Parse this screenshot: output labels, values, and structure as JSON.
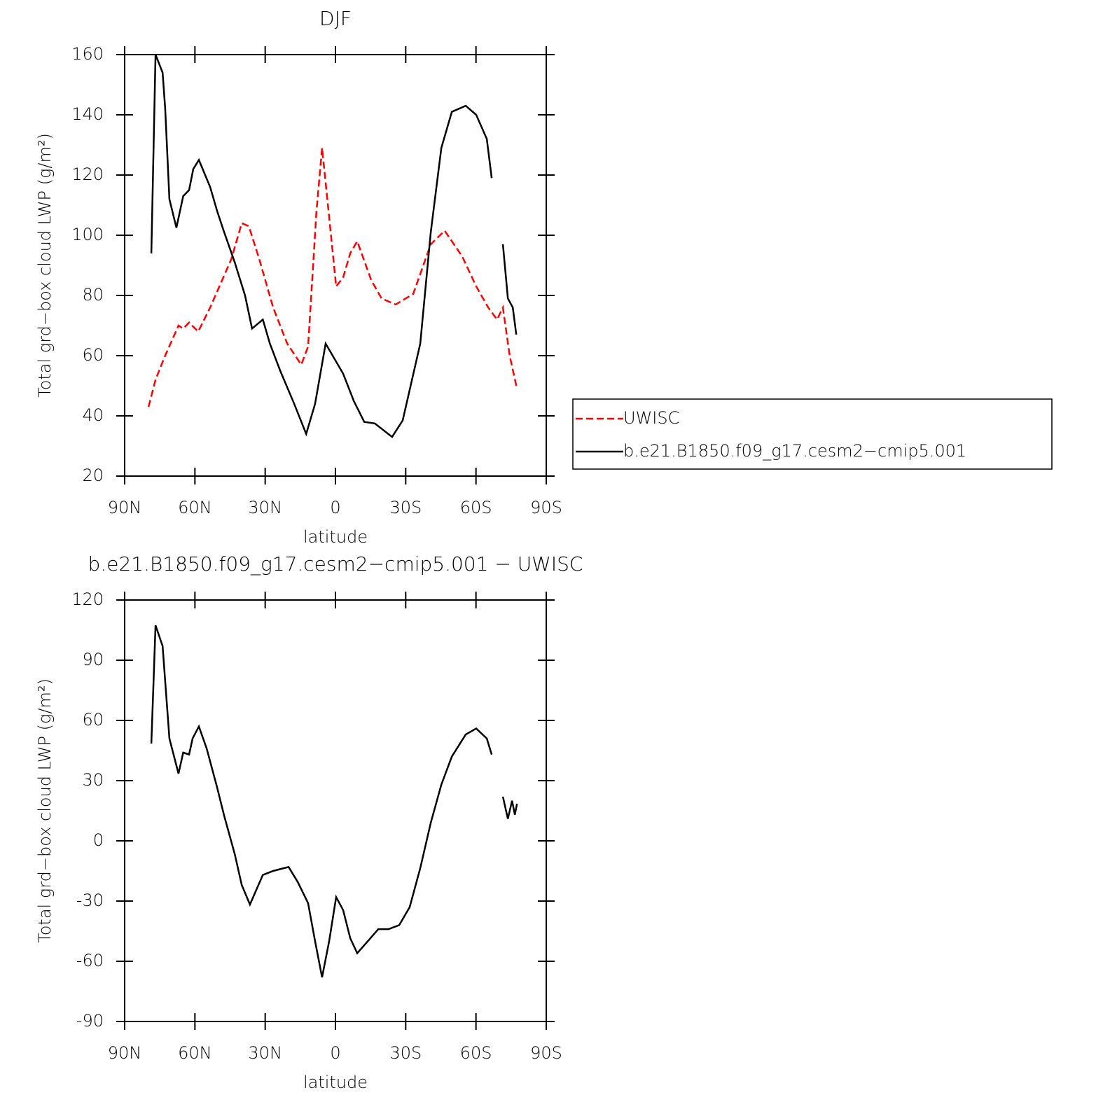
{
  "chart_data": [
    {
      "type": "line",
      "title": "DJF",
      "xlabel": "latitude",
      "ylabel": "Total grd−box cloud LWP (g/m²)",
      "xlim": [
        90,
        -90
      ],
      "xticks": [
        {
          "value": 90,
          "label": "90N"
        },
        {
          "value": 60,
          "label": "60N"
        },
        {
          "value": 30,
          "label": "30N"
        },
        0,
        {
          "value": -30,
          "label": "30S"
        },
        {
          "value": -60,
          "label": "60S"
        },
        {
          "value": -90,
          "label": "90S"
        }
      ],
      "ylim": [
        20,
        160
      ],
      "yticks": [
        20,
        40,
        60,
        80,
        100,
        120,
        140,
        160
      ],
      "legend": "right",
      "series": [
        {
          "name": "UWISC",
          "color": "#ff0000",
          "linestyle": "dashed",
          "x": [
            79.8,
            76.8,
            73,
            67,
            65,
            62.5,
            58.6,
            53.5,
            49,
            44.5,
            40,
            37,
            32.5,
            26.6,
            20.6,
            14.6,
            11.7,
            8.1,
            5.7,
            2.7,
            -0.3,
            -3.3,
            -6.3,
            -9.3,
            -15.3,
            -19.7,
            -25.7,
            -33.2,
            -40.7,
            -46.6,
            -54.1,
            -60.1,
            -65.2,
            -69,
            -71.5,
            -74.4,
            -77.5
          ],
          "values": [
            43,
            52,
            59.5,
            70,
            69,
            71,
            68,
            76,
            84,
            92,
            104,
            103,
            92,
            76,
            64,
            57,
            63,
            108,
            129,
            106,
            83,
            86,
            94,
            98,
            85,
            79,
            77,
            80.5,
            97,
            101.5,
            93,
            83,
            76,
            72,
            76,
            60,
            49
          ]
        },
        {
          "name": "b.e21.B1850.f09_g17.cesm2−cmip5.001",
          "color": "#000000",
          "linestyle": "solid",
          "x": [
            78.6,
            76.8,
            73.8,
            72.7,
            70.9,
            67.9,
            65,
            62.5,
            60.7,
            58.3,
            53.5,
            50.5,
            47.5,
            43,
            38.6,
            35.6,
            31,
            28,
            23.6,
            17.6,
            12.5,
            8.7,
            4.2,
            1.2,
            -3.3,
            -7.8,
            -12.3,
            -16.8,
            -24.2,
            -28.7,
            -36.2,
            -40.7,
            -45.2,
            -49.7,
            -55.6,
            -60.1,
            -64.6,
            -66.7,
            -69,
            -71.5,
            -73.6,
            -75.7,
            -77.2
          ],
          "values": [
            94,
            160,
            154,
            142,
            112,
            102.5,
            113,
            115,
            122,
            125,
            116,
            108,
            101,
            91,
            80,
            69,
            72,
            64,
            55,
            44,
            34,
            44,
            64,
            60,
            54,
            45,
            38,
            37.5,
            33,
            38.5,
            64,
            101,
            129,
            141,
            143,
            140,
            132,
            119,
            null,
            97,
            79,
            76,
            67
          ]
        }
      ]
    },
    {
      "type": "line",
      "title": "b.e21.B1850.f09_g17.cesm2−cmip5.001  −  UWISC",
      "xlabel": "latitude",
      "ylabel": "Total grd−box cloud LWP (g/m²)",
      "xlim": [
        90,
        -90
      ],
      "xticks": [
        {
          "value": 90,
          "label": "90N"
        },
        {
          "value": 60,
          "label": "60N"
        },
        {
          "value": 30,
          "label": "30N"
        },
        0,
        {
          "value": -30,
          "label": "30S"
        },
        {
          "value": -60,
          "label": "60S"
        },
        {
          "value": -90,
          "label": "90S"
        }
      ],
      "ylim": [
        -90,
        120
      ],
      "yticks": [
        -90,
        -60,
        -30,
        0,
        30,
        60,
        90,
        120
      ],
      "series": [
        {
          "color": "#000000",
          "linestyle": "solid",
          "x": [
            78.6,
            76.8,
            73.8,
            70.9,
            67,
            65,
            62.5,
            61,
            58.3,
            55,
            50.5,
            47.5,
            43,
            40,
            36.5,
            31,
            26.6,
            22,
            20,
            16.1,
            11.7,
            8.7,
            5.7,
            2.7,
            -0.3,
            -3.3,
            -6.3,
            -9.3,
            -13.8,
            -18.3,
            -22.7,
            -27.2,
            -31.7,
            -36.2,
            -40.7,
            -45.2,
            -49.7,
            -55.6,
            -60.1,
            -64.6,
            -66.7,
            -69,
            -71.5,
            -73.6,
            -75.4,
            -76.6,
            -77.5
          ],
          "values": [
            48.5,
            107.4,
            97,
            51,
            33.5,
            44,
            43,
            51,
            57,
            46,
            26.5,
            12.5,
            -6.6,
            -22,
            -31.7,
            -17,
            -15,
            -13.6,
            -13,
            -20.5,
            -31,
            -50,
            -68,
            -50,
            -28,
            -34.5,
            -48.5,
            -56,
            -50,
            -44,
            -44,
            -42,
            -33,
            -13.6,
            9,
            28,
            42,
            53,
            56,
            51,
            43,
            null,
            22,
            11,
            20,
            13,
            18.5
          ]
        }
      ]
    }
  ]
}
